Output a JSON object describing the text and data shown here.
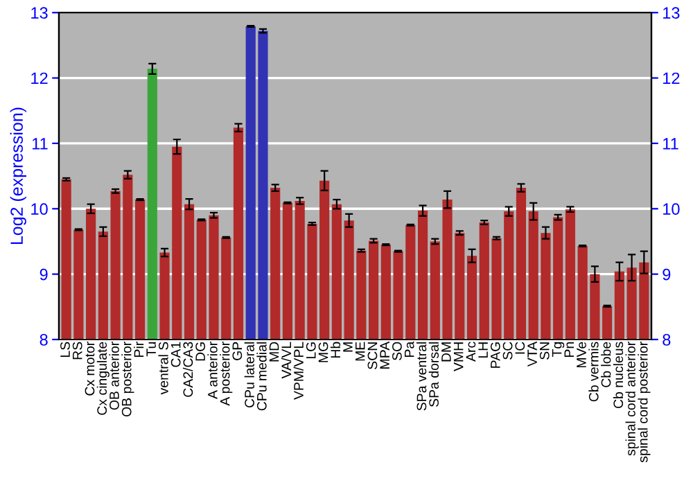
{
  "chart_data": {
    "type": "bar",
    "ylabel": "Log2 (expression)",
    "categories": [
      "LS",
      "RS",
      "Cx motor",
      "Cx cingulate",
      "OB anterior",
      "OB posterior",
      "Pir",
      "Tu",
      "ventral S",
      "CA1",
      "CA2/CA3",
      "DG",
      "A anterior",
      "A posterior",
      "GP",
      "CPu lateral",
      "CPu medial",
      "MD",
      "VA/VL",
      "VPM/VPL",
      "LG",
      "MG",
      "Hb",
      "M",
      "ME",
      "SCN",
      "MPA",
      "SO",
      "Pa",
      "SPa ventral",
      "SPa dorsal",
      "DM",
      "VMH",
      "Arc",
      "LH",
      "PAG",
      "SC",
      "IC",
      "VTA",
      "SN",
      "Tg",
      "Pn",
      "MVe",
      "Cb vermis",
      "Cb lobe",
      "Cb nucleus",
      "spinal cord anterior",
      "spinal cord posterior"
    ],
    "values": [
      10.45,
      9.68,
      10.0,
      9.65,
      10.27,
      10.52,
      10.14,
      12.14,
      9.33,
      10.95,
      10.07,
      9.83,
      9.9,
      9.56,
      11.24,
      12.79,
      12.72,
      10.32,
      10.09,
      10.12,
      9.77,
      10.43,
      10.07,
      9.82,
      9.36,
      9.51,
      9.45,
      9.35,
      9.75,
      9.97,
      9.5,
      10.14,
      9.63,
      9.28,
      9.79,
      9.55,
      9.96,
      10.32,
      9.96,
      9.63,
      9.87,
      9.99,
      9.43,
      9.0,
      8.51,
      9.04,
      9.1,
      9.18
    ],
    "errors": [
      0.02,
      0.01,
      0.07,
      0.07,
      0.03,
      0.06,
      0.01,
      0.08,
      0.06,
      0.11,
      0.08,
      0.01,
      0.04,
      0.01,
      0.06,
      0.01,
      0.03,
      0.05,
      0.01,
      0.05,
      0.02,
      0.15,
      0.07,
      0.1,
      0.02,
      0.03,
      0.01,
      0.01,
      0.01,
      0.08,
      0.04,
      0.13,
      0.03,
      0.1,
      0.03,
      0.02,
      0.07,
      0.06,
      0.13,
      0.09,
      0.04,
      0.04,
      0.01,
      0.12,
      0.01,
      0.14,
      0.2,
      0.17
    ],
    "colors": [
      "#b22a2a",
      "#b22a2a",
      "#b22a2a",
      "#b22a2a",
      "#b22a2a",
      "#b22a2a",
      "#b22a2a",
      "#3aa63a",
      "#b22a2a",
      "#b22a2a",
      "#b22a2a",
      "#b22a2a",
      "#b22a2a",
      "#b22a2a",
      "#b22a2a",
      "#3232b4",
      "#3232b4",
      "#b22a2a",
      "#b22a2a",
      "#b22a2a",
      "#b22a2a",
      "#b22a2a",
      "#b22a2a",
      "#b22a2a",
      "#b22a2a",
      "#b22a2a",
      "#b22a2a",
      "#b22a2a",
      "#b22a2a",
      "#b22a2a",
      "#b22a2a",
      "#b22a2a",
      "#b22a2a",
      "#b22a2a",
      "#b22a2a",
      "#b22a2a",
      "#b22a2a",
      "#b22a2a",
      "#b22a2a",
      "#b22a2a",
      "#b22a2a",
      "#b22a2a",
      "#b22a2a",
      "#b22a2a",
      "#b22a2a",
      "#b22a2a",
      "#b22a2a",
      "#b22a2a"
    ],
    "ylim": [
      8,
      13
    ],
    "yticks": [
      8,
      9,
      10,
      11,
      12,
      13
    ],
    "y2lim": [
      8,
      13
    ],
    "y2ticks": [
      8,
      9,
      10,
      11,
      12,
      13
    ],
    "grid": "y"
  }
}
